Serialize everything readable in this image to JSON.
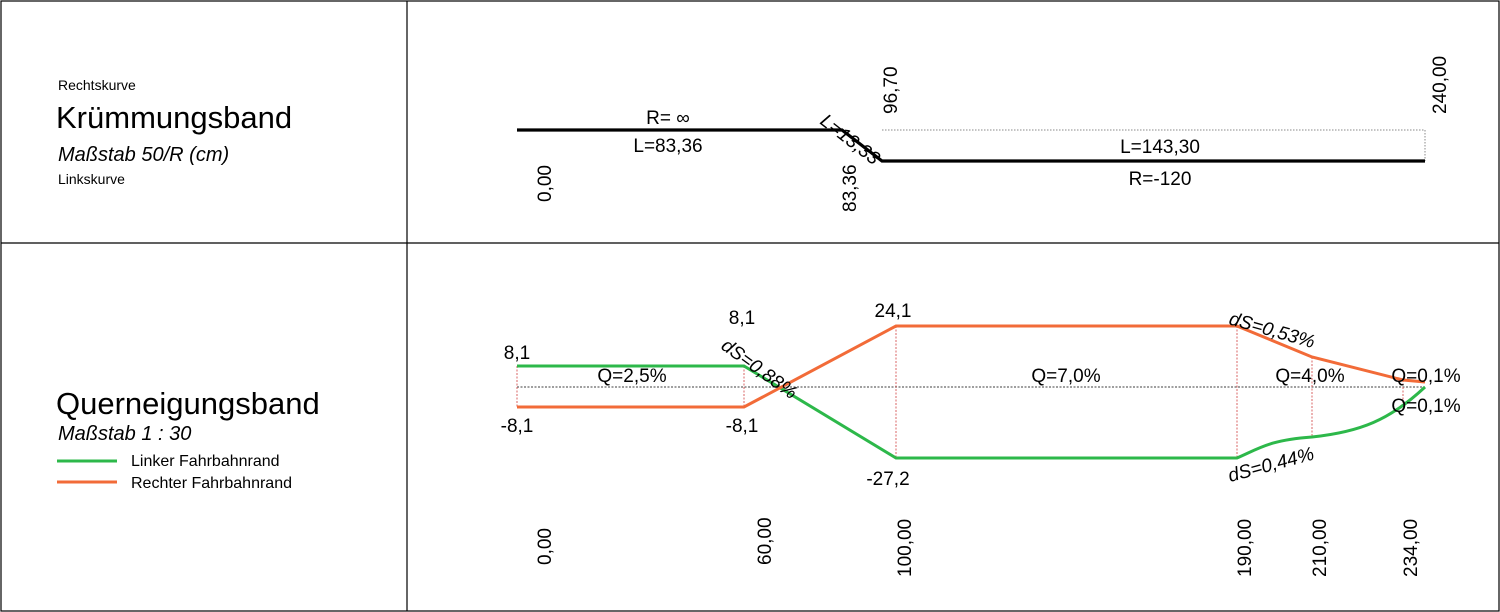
{
  "curvature_band": {
    "top_label": "Rechtskurve",
    "title": "Krümmungsband",
    "scale": "Maßstab 50/R (cm)",
    "bottom_label": "Linkskurve",
    "stations": [
      "0,00",
      "83,36",
      "96,70",
      "240,00"
    ],
    "segments": [
      {
        "radius": "R= ∞",
        "length": "L=83,36"
      },
      {
        "length": "L=13,33"
      },
      {
        "length": "L=143,30",
        "radius": "R=-120"
      }
    ]
  },
  "crossfall_band": {
    "title": "Querneigungsband",
    "scale": "Maßstab 1 : 30",
    "legend": [
      {
        "label": "Linker Fahrbahnrand",
        "color": "#2db84a"
      },
      {
        "label": "Rechter Fahrbahnrand",
        "color": "#f26b38"
      }
    ],
    "stations": [
      "0,00",
      "60,00",
      "100,00",
      "190,00",
      "210,00",
      "234,00"
    ],
    "edge_values": [
      "8,1",
      "-8,1",
      "8,1",
      "-8,1",
      "24,1",
      "-27,2"
    ],
    "crossfalls": [
      "Q=2,5%",
      "Q=7,0%",
      "Q=4,0%",
      "Q=0,1%",
      "Q=0,1%"
    ],
    "slope_changes": [
      "dS=0,88%",
      "dS=0,53%",
      "dS=0,44%"
    ]
  },
  "colors": {
    "left_edge": "#2db84a",
    "right_edge": "#f26b38",
    "reference_line": "#d04040"
  }
}
